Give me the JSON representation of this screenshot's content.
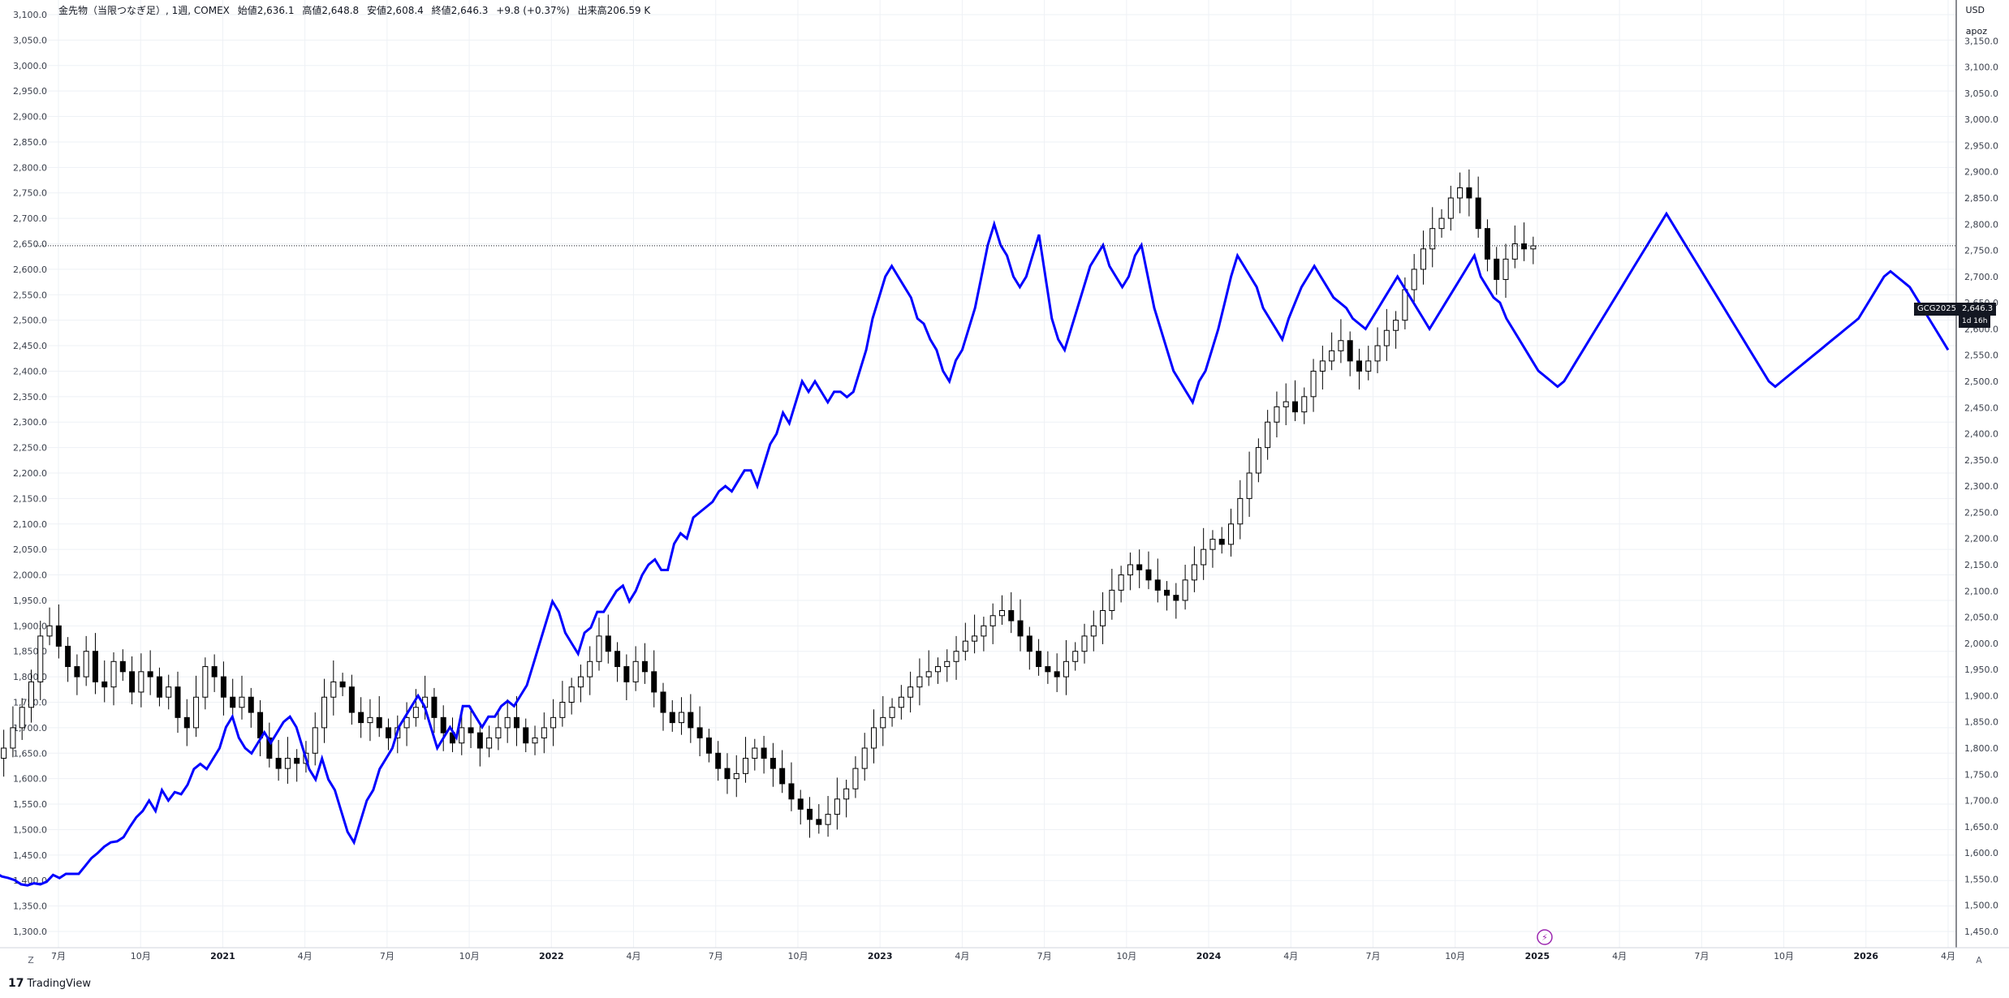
{
  "legend": {
    "symbol_info": "金先物（当限つなぎ足）, 1週, COMEX",
    "open": "始値2,636.1",
    "high": "高値2,648.8",
    "low": "安値2,608.4",
    "close": "終値2,646.3",
    "change": "+9.8 (+0.37%)",
    "volume": "出来高206.59 K"
  },
  "axis_units": {
    "currency": "USD",
    "compare_symbol": "apoz"
  },
  "price_tag": {
    "symbol": "GCG2025",
    "value": "2,646.3",
    "countdown": "1d 16h"
  },
  "brand": {
    "logo": "17",
    "name": "TradingView"
  },
  "buttons": {
    "left": "Z",
    "right": "A"
  },
  "colors": {
    "line": "#0000ff",
    "candle_up": "#ffffff",
    "candle_down": "#000000",
    "candle_border": "#000000"
  },
  "chart_data": {
    "type": "line",
    "left_axis": {
      "min": 1300,
      "max": 3100,
      "ticks": [
        "1,300.0",
        "1,350.0",
        "1,400.0",
        "1,450.0",
        "1,500.0",
        "1,550.0",
        "1,600.0",
        "1,650.0",
        "1,700.0",
        "1,750.0",
        "1,800.0",
        "1,850.0",
        "1,900.0",
        "1,950.0",
        "2,000.0",
        "2,050.0",
        "2,100.0",
        "2,150.0",
        "2,200.0",
        "2,250.0",
        "2,300.0",
        "2,350.0",
        "2,400.0",
        "2,450.0",
        "2,500.0",
        "2,550.0",
        "2,600.0",
        "2,650.0",
        "2,700.0",
        "2,750.0",
        "2,800.0",
        "2,850.0",
        "2,900.0",
        "2,950.0",
        "3,000.0",
        "3,050.0",
        "3,100.0"
      ]
    },
    "right_axis": {
      "min": 1450,
      "max": 3200,
      "ticks": [
        "1,450.0",
        "1,500.0",
        "1,550.0",
        "1,600.0",
        "1,650.0",
        "1,700.0",
        "1,750.0",
        "1,800.0",
        "1,850.0",
        "1,900.0",
        "1,950.0",
        "2,000.0",
        "2,050.0",
        "2,100.0",
        "2,150.0",
        "2,200.0",
        "2,250.0",
        "2,300.0",
        "2,350.0",
        "2,400.0",
        "2,450.0",
        "2,500.0",
        "2,550.0",
        "2,600.0",
        "2,650.0",
        "2,700.0",
        "2,750.0",
        "2,800.0",
        "2,850.0",
        "2,900.0",
        "2,950.0",
        "3,000.0",
        "3,050.0",
        "3,100.0",
        "3,150.0"
      ]
    },
    "x_labels": [
      {
        "label": "7月",
        "t": 1.0,
        "year": false
      },
      {
        "label": "10月",
        "t": 2.0,
        "year": false
      },
      {
        "label": "2021",
        "t": 3.0,
        "year": true
      },
      {
        "label": "4月",
        "t": 4.0,
        "year": false
      },
      {
        "label": "7月",
        "t": 5.0,
        "year": false
      },
      {
        "label": "10月",
        "t": 6.0,
        "year": false
      },
      {
        "label": "2022",
        "t": 7.0,
        "year": true
      },
      {
        "label": "4月",
        "t": 8.0,
        "year": false
      },
      {
        "label": "7月",
        "t": 9.0,
        "year": false
      },
      {
        "label": "10月",
        "t": 10.0,
        "year": false
      },
      {
        "label": "2023",
        "t": 11.0,
        "year": true
      },
      {
        "label": "4月",
        "t": 12.0,
        "year": false
      },
      {
        "label": "7月",
        "t": 13.0,
        "year": false
      },
      {
        "label": "10月",
        "t": 14.0,
        "year": false
      },
      {
        "label": "2024",
        "t": 15.0,
        "year": true
      },
      {
        "label": "4月",
        "t": 16.0,
        "year": false
      },
      {
        "label": "7月",
        "t": 17.0,
        "year": false
      },
      {
        "label": "10月",
        "t": 18.0,
        "year": false
      },
      {
        "label": "2025",
        "t": 19.0,
        "year": true
      },
      {
        "label": "4月",
        "t": 20.0,
        "year": false
      },
      {
        "label": "7月",
        "t": 21.0,
        "year": false
      },
      {
        "label": "10月",
        "t": 22.0,
        "year": false
      },
      {
        "label": "2026",
        "t": 23.0,
        "year": true
      },
      {
        "label": "4月",
        "t": 24.0,
        "year": false
      }
    ],
    "candles": {
      "t_start": 0.0,
      "t_end": 18.95,
      "close": [
        1575,
        1610,
        1640,
        1660,
        1700,
        1740,
        1790,
        1880,
        1900,
        1860,
        1820,
        1800,
        1850,
        1790,
        1780,
        1830,
        1810,
        1770,
        1810,
        1800,
        1760,
        1780,
        1720,
        1700,
        1760,
        1820,
        1800,
        1760,
        1740,
        1760,
        1730,
        1680,
        1640,
        1620,
        1640,
        1630,
        1650,
        1700,
        1760,
        1790,
        1780,
        1730,
        1710,
        1720,
        1700,
        1680,
        1700,
        1720,
        1740,
        1760,
        1720,
        1690,
        1670,
        1700,
        1690,
        1660,
        1680,
        1700,
        1720,
        1700,
        1670,
        1680,
        1700,
        1720,
        1750,
        1780,
        1800,
        1830,
        1880,
        1850,
        1820,
        1790,
        1830,
        1810,
        1770,
        1730,
        1710,
        1730,
        1700,
        1680,
        1650,
        1620,
        1600,
        1610,
        1640,
        1660,
        1640,
        1620,
        1590,
        1560,
        1540,
        1520,
        1510,
        1530,
        1560,
        1580,
        1620,
        1660,
        1700,
        1720,
        1740,
        1760,
        1780,
        1800,
        1810,
        1820,
        1830,
        1850,
        1870,
        1880,
        1900,
        1920,
        1930,
        1910,
        1880,
        1850,
        1820,
        1810,
        1800,
        1830,
        1850,
        1880,
        1900,
        1930,
        1970,
        2000,
        2020,
        2010,
        1990,
        1970,
        1960,
        1950,
        1990,
        2020,
        2050,
        2070,
        2060,
        2100,
        2150,
        2200,
        2250,
        2300,
        2330,
        2340,
        2320,
        2350,
        2400,
        2420,
        2440,
        2460,
        2420,
        2400,
        2420,
        2450,
        2480,
        2500,
        2560,
        2600,
        2640,
        2680,
        2700,
        2740,
        2760,
        2740,
        2680,
        2620,
        2580,
        2620,
        2650,
        2640,
        2646
      ],
      "range": [
        1550,
        2760
      ]
    },
    "line": {
      "t_start": 0.0,
      "t_end": 24.0,
      "values": [
        1555,
        1560,
        1565,
        1562,
        1555,
        1552,
        1548,
        1540,
        1538,
        1542,
        1540,
        1545,
        1558,
        1552,
        1560,
        1560,
        1560,
        1575,
        1590,
        1600,
        1612,
        1620,
        1622,
        1630,
        1650,
        1668,
        1680,
        1700,
        1680,
        1720,
        1700,
        1716,
        1712,
        1730,
        1760,
        1770,
        1760,
        1780,
        1800,
        1840,
        1860,
        1820,
        1800,
        1790,
        1810,
        1830,
        1810,
        1830,
        1850,
        1860,
        1840,
        1800,
        1760,
        1740,
        1780,
        1740,
        1720,
        1680,
        1640,
        1620,
        1660,
        1700,
        1720,
        1760,
        1780,
        1800,
        1840,
        1860,
        1880,
        1900,
        1880,
        1840,
        1800,
        1820,
        1840,
        1820,
        1880,
        1880,
        1860,
        1840,
        1860,
        1860,
        1880,
        1890,
        1880,
        1900,
        1920,
        1960,
        2000,
        2040,
        2080,
        2060,
        2020,
        2000,
        1980,
        2020,
        2030,
        2060,
        2060,
        2080,
        2100,
        2110,
        2080,
        2100,
        2130,
        2150,
        2160,
        2140,
        2140,
        2190,
        2210,
        2200,
        2240,
        2250,
        2260,
        2270,
        2290,
        2300,
        2290,
        2310,
        2330,
        2330,
        2300,
        2340,
        2380,
        2400,
        2440,
        2420,
        2460,
        2500,
        2480,
        2500,
        2480,
        2460,
        2480,
        2480,
        2470,
        2480,
        2520,
        2560,
        2620,
        2660,
        2700,
        2720,
        2700,
        2680,
        2660,
        2620,
        2610,
        2580,
        2560,
        2520,
        2500,
        2540,
        2560,
        2600,
        2640,
        2700,
        2760,
        2800,
        2760,
        2740,
        2700,
        2680,
        2700,
        2740,
        2780,
        2700,
        2620,
        2580,
        2560,
        2600,
        2640,
        2680,
        2720,
        2740,
        2760,
        2720,
        2700,
        2680,
        2700,
        2740,
        2760,
        2700,
        2640,
        2600,
        2560,
        2520,
        2500,
        2480,
        2460,
        2500,
        2520,
        2560,
        2600,
        2650,
        2700,
        2740,
        2720,
        2700,
        2680,
        2640,
        2620,
        2600,
        2580,
        2620,
        2650,
        2680,
        2700,
        2720,
        2700,
        2680,
        2660,
        2650,
        2640,
        2620,
        2610,
        2600,
        2620,
        2640,
        2660,
        2680,
        2700,
        2680,
        2660,
        2640,
        2620,
        2600,
        2620,
        2640,
        2660,
        2680,
        2700,
        2720,
        2740,
        2700,
        2680,
        2660,
        2650,
        2620,
        2600,
        2580,
        2560,
        2540,
        2520,
        2510,
        2500,
        2490,
        2500,
        2520,
        2540,
        2560,
        2580,
        2600,
        2620,
        2640,
        2660,
        2680,
        2700,
        2720,
        2740,
        2760,
        2780,
        2800,
        2820,
        2800,
        2780,
        2760,
        2740,
        2720,
        2700,
        2680,
        2660,
        2640,
        2620,
        2600,
        2580,
        2560,
        2540,
        2520,
        2500,
        2490,
        2500,
        2510,
        2520,
        2530,
        2540,
        2550,
        2560,
        2570,
        2580,
        2590,
        2600,
        2610,
        2620,
        2640,
        2660,
        2680,
        2700,
        2710,
        2700,
        2690,
        2680,
        2660,
        2640,
        2620,
        2600,
        2580,
        2560
      ]
    }
  }
}
